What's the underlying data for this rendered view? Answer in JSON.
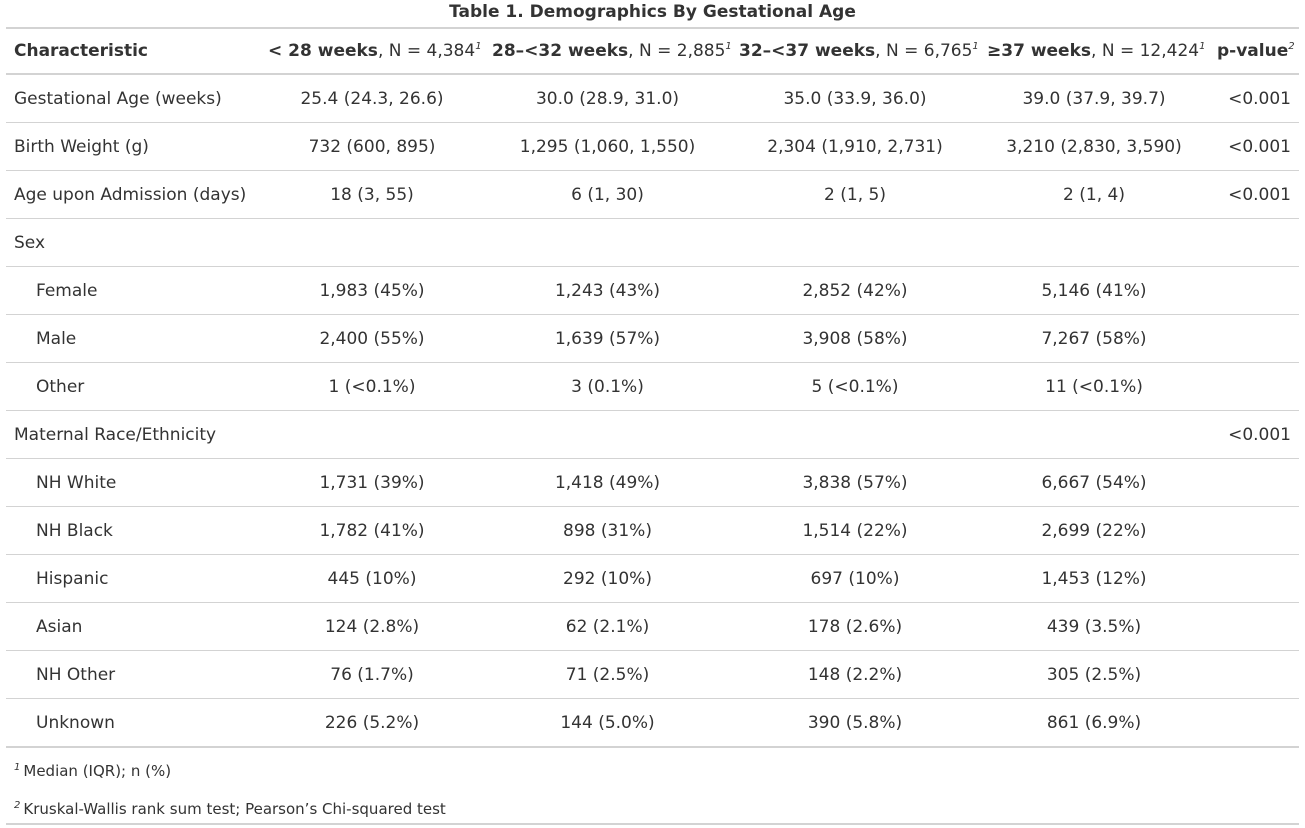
{
  "title": "Table 1. Demographics By Gestational Age",
  "header": {
    "characteristic": "Characteristic",
    "columns": [
      {
        "bold": "< 28 weeks",
        "rest": ", N = 4,384",
        "sup": "1"
      },
      {
        "bold": "28–<32 weeks",
        "rest": ", N = 2,885",
        "sup": "1"
      },
      {
        "bold": "32–<37 weeks",
        "rest": ", N = 6,765",
        "sup": "1"
      },
      {
        "bold": "≥37 weeks",
        "rest": ", N = 12,424",
        "sup": "1"
      }
    ],
    "pvalue": {
      "bold": "p-value",
      "sup": "2"
    }
  },
  "rows": [
    {
      "label": "Gestational Age (weeks)",
      "values": [
        "25.4 (24.3, 26.6)",
        "30.0 (28.9, 31.0)",
        "35.0 (33.9, 36.0)",
        "39.0 (37.9, 39.7)"
      ],
      "p": "<0.001"
    },
    {
      "label": "Birth Weight (g)",
      "values": [
        "732 (600, 895)",
        "1,295 (1,060, 1,550)",
        "2,304 (1,910, 2,731)",
        "3,210 (2,830, 3,590)"
      ],
      "p": "<0.001"
    },
    {
      "label": "Age upon Admission (days)",
      "values": [
        "18 (3, 55)",
        "6 (1, 30)",
        "2 (1, 5)",
        "2 (1, 4)"
      ],
      "p": "<0.001"
    },
    {
      "label": "Sex",
      "values": [
        "",
        "",
        "",
        ""
      ],
      "p": ""
    },
    {
      "label": "Female",
      "values": [
        "1,983 (45%)",
        "1,243 (43%)",
        "2,852 (42%)",
        "5,146 (41%)"
      ],
      "p": ""
    },
    {
      "label": "Male",
      "values": [
        "2,400 (55%)",
        "1,639 (57%)",
        "3,908 (58%)",
        "7,267 (58%)"
      ],
      "p": ""
    },
    {
      "label": "Other",
      "values": [
        "1 (<0.1%)",
        "3 (0.1%)",
        "5 (<0.1%)",
        "11 (<0.1%)"
      ],
      "p": ""
    },
    {
      "label": "Maternal Race/Ethnicity",
      "values": [
        "",
        "",
        "",
        ""
      ],
      "p": "<0.001"
    },
    {
      "label": "NH White",
      "values": [
        "1,731 (39%)",
        "1,418 (49%)",
        "3,838 (57%)",
        "6,667 (54%)"
      ],
      "p": ""
    },
    {
      "label": "NH Black",
      "values": [
        "1,782 (41%)",
        "898 (31%)",
        "1,514 (22%)",
        "2,699 (22%)"
      ],
      "p": ""
    },
    {
      "label": "Hispanic",
      "values": [
        "445 (10%)",
        "292 (10%)",
        "697 (10%)",
        "1,453 (12%)"
      ],
      "p": ""
    },
    {
      "label": "Asian",
      "values": [
        "124 (2.8%)",
        "62 (2.1%)",
        "178 (2.6%)",
        "439 (3.5%)"
      ],
      "p": ""
    },
    {
      "label": "NH Other",
      "values": [
        "76 (1.7%)",
        "71 (2.5%)",
        "148 (2.2%)",
        "305 (2.5%)"
      ],
      "p": ""
    },
    {
      "label": "Unknown",
      "values": [
        "226 (5.2%)",
        "144 (5.0%)",
        "390 (5.8%)",
        "861 (6.9%)"
      ],
      "p": ""
    }
  ],
  "footnotes": [
    {
      "mark": "1",
      "text": "Median (IQR); n (%)"
    },
    {
      "mark": "2",
      "text": "Kruskal-Wallis rank sum test; Pearson’s Chi-squared test"
    }
  ]
}
